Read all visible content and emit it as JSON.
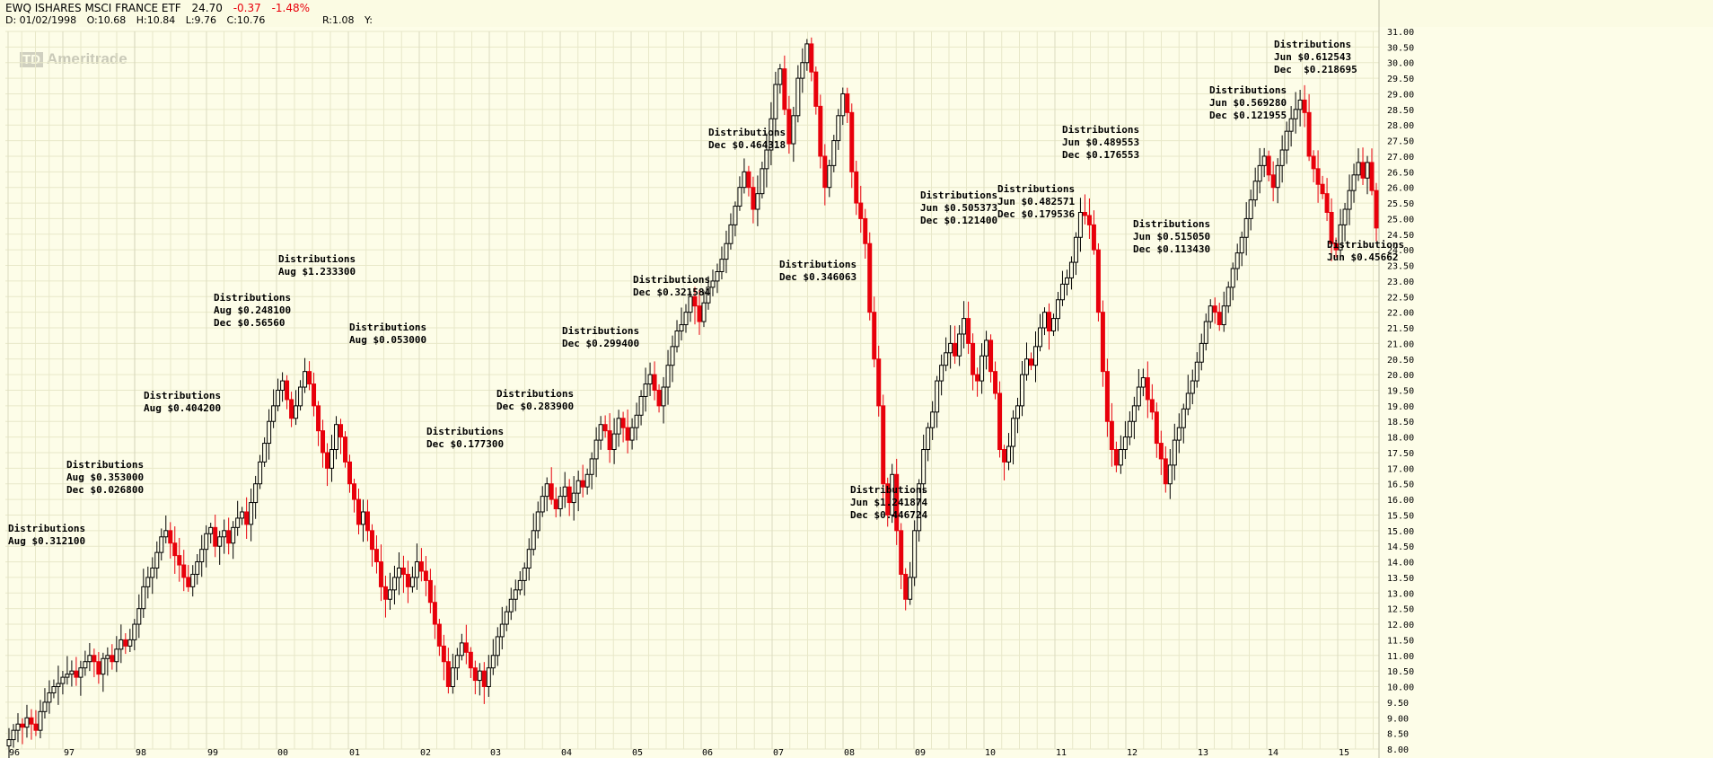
{
  "header": {
    "symbol_line": "EWQ ISHARES MSCI FRANCE ETF",
    "last": "24.70",
    "change": "-0.37",
    "change_pct": "-1.48%",
    "date": "D: 01/02/1998",
    "open": "O:10.68",
    "high": "H:10.84",
    "low": "L:9.76",
    "close": "C:10.76",
    "ratio": "R:1.08",
    "y_label": "Y:"
  },
  "watermark": {
    "badge": "TD",
    "text": "Ameritrade"
  },
  "colors": {
    "background": "#fdfde8",
    "grid": "#e8e8c9",
    "up": "#000000",
    "down": "#e8000b"
  },
  "chart_data": {
    "type": "candlestick",
    "grid": true,
    "y_axis_side": "right",
    "ylim": [
      8.0,
      31.0
    ],
    "y_ticks": [
      "8.00",
      "8.50",
      "9.00",
      "9.50",
      "10.00",
      "10.50",
      "11.00",
      "11.50",
      "12.00",
      "12.50",
      "13.00",
      "13.50",
      "14.00",
      "14.50",
      "15.00",
      "15.50",
      "16.00",
      "16.50",
      "17.00",
      "17.50",
      "18.00",
      "18.50",
      "19.00",
      "19.50",
      "20.00",
      "20.50",
      "21.00",
      "21.50",
      "22.00",
      "22.50",
      "23.00",
      "23.50",
      "24.00",
      "24.50",
      "25.00",
      "25.50",
      "26.00",
      "26.50",
      "27.00",
      "27.50",
      "28.00",
      "28.50",
      "29.00",
      "29.50",
      "30.00",
      "30.50",
      "31.00"
    ],
    "x_ticks": [
      "96",
      "97",
      "98",
      "99",
      "00",
      "01",
      "02",
      "03",
      "04",
      "05",
      "06",
      "07",
      "08",
      "09",
      "10",
      "11",
      "12",
      "13",
      "14",
      "15"
    ],
    "close": [
      8.3,
      8.6,
      8.8,
      8.7,
      9.0,
      8.8,
      8.6,
      9.2,
      9.5,
      9.8,
      10.0,
      10.1,
      10.3,
      10.4,
      10.5,
      10.3,
      10.6,
      10.8,
      11.0,
      10.8,
      10.4,
      10.9,
      11.0,
      10.8,
      11.2,
      11.5,
      11.3,
      11.5,
      12.0,
      12.5,
      13.2,
      13.5,
      13.8,
      14.3,
      14.8,
      15.0,
      14.6,
      14.2,
      13.9,
      13.5,
      13.2,
      13.6,
      14.0,
      14.4,
      14.9,
      15.1,
      14.5,
      14.8,
      15.0,
      14.6,
      15.1,
      15.4,
      15.6,
      15.2,
      15.9,
      16.5,
      17.2,
      17.8,
      18.5,
      19.0,
      19.5,
      19.8,
      19.2,
      18.6,
      19.0,
      19.6,
      20.1,
      19.7,
      19.0,
      18.2,
      17.5,
      17.0,
      17.6,
      18.4,
      18.0,
      17.2,
      16.5,
      16.0,
      15.2,
      15.6,
      15.0,
      14.4,
      14.0,
      13.2,
      12.8,
      13.1,
      13.5,
      13.8,
      13.6,
      13.2,
      13.5,
      14.0,
      13.7,
      13.4,
      12.7,
      12.0,
      11.3,
      10.8,
      10.0,
      10.6,
      11.0,
      11.4,
      11.1,
      10.6,
      10.2,
      10.5,
      10.0,
      10.6,
      11.0,
      11.6,
      12.0,
      12.4,
      12.8,
      13.1,
      13.4,
      13.8,
      14.4,
      15.0,
      15.6,
      16.1,
      16.5,
      16.0,
      15.7,
      16.1,
      16.4,
      15.9,
      16.2,
      16.6,
      16.4,
      16.8,
      17.3,
      17.9,
      18.4,
      18.2,
      17.6,
      18.1,
      18.6,
      18.3,
      17.9,
      18.3,
      18.7,
      19.3,
      19.7,
      20.0,
      19.5,
      19.0,
      19.6,
      20.3,
      20.9,
      21.4,
      21.6,
      22.0,
      22.5,
      22.2,
      21.7,
      22.3,
      22.8,
      23.0,
      23.3,
      23.7,
      24.2,
      24.8,
      25.4,
      26.0,
      26.5,
      26.0,
      25.3,
      25.8,
      26.6,
      27.2,
      28.2,
      29.3,
      29.8,
      28.5,
      27.4,
      28.3,
      29.5,
      30.0,
      30.6,
      29.7,
      28.6,
      27.0,
      26.0,
      26.7,
      27.5,
      28.3,
      29.0,
      28.4,
      26.5,
      25.5,
      25.0,
      24.2,
      22.0,
      20.5,
      19.0,
      16.5,
      15.5,
      16.8,
      15.0,
      13.6,
      12.8,
      13.5,
      15.0,
      16.5,
      17.6,
      18.3,
      18.8,
      19.8,
      20.3,
      20.7,
      21.0,
      20.6,
      21.3,
      21.8,
      21.0,
      20.0,
      19.8,
      20.6,
      21.1,
      20.1,
      19.4,
      17.6,
      17.2,
      17.7,
      18.6,
      19.0,
      20.0,
      20.5,
      20.3,
      20.9,
      21.5,
      22.0,
      21.4,
      21.8,
      22.4,
      22.9,
      23.1,
      23.6,
      24.4,
      25.2,
      25.1,
      24.8,
      24.0,
      22.0,
      20.1,
      18.5,
      17.6,
      17.1,
      17.6,
      18.0,
      18.5,
      19.0,
      19.6,
      19.9,
      19.2,
      18.8,
      17.8,
      17.3,
      16.5,
      17.1,
      17.9,
      18.3,
      18.9,
      19.4,
      19.8,
      20.4,
      21.0,
      21.7,
      22.2,
      22.0,
      21.6,
      22.2,
      22.8,
      23.4,
      23.9,
      24.4,
      25.0,
      25.6,
      26.2,
      26.7,
      27.0,
      26.4,
      26.0,
      26.7,
      27.2,
      27.8,
      28.2,
      28.5,
      28.8,
      28.4,
      27.0,
      26.6,
      26.1,
      25.8,
      25.2,
      24.2,
      24.0,
      24.8,
      25.3,
      25.9,
      26.4,
      26.8,
      26.3,
      26.8,
      25.9,
      24.7
    ],
    "distributions": [
      {
        "title": "Distributions",
        "lines": [
          "Aug $0.312100"
        ]
      },
      {
        "title": "Distributions",
        "lines": [
          "Aug $0.353000",
          "Dec $0.026800"
        ]
      },
      {
        "title": "Distributions",
        "lines": [
          "Aug $0.404200"
        ]
      },
      {
        "title": "Distributions",
        "lines": [
          "Aug $0.248100",
          "Dec $0.56560"
        ]
      },
      {
        "title": "Distributions",
        "lines": [
          "Aug $1.233300"
        ]
      },
      {
        "title": "Distributions",
        "lines": [
          "Aug $0.053000"
        ]
      },
      {
        "title": "Distributions",
        "lines": [
          "Dec $0.177300"
        ]
      },
      {
        "title": "Distributions",
        "lines": [
          "Dec $0.283900"
        ]
      },
      {
        "title": "Distributions",
        "lines": [
          "Dec $0.299400"
        ]
      },
      {
        "title": "Distributions",
        "lines": [
          "Dec $0.321584"
        ]
      },
      {
        "title": "Distributions",
        "lines": [
          "Dec $0.464318"
        ]
      },
      {
        "title": "Distributions",
        "lines": [
          "Dec $0.346063"
        ]
      },
      {
        "title": "Distributions",
        "lines": [
          "Jun $1.241874",
          "Dec $0.446724"
        ]
      },
      {
        "title": "Distributions",
        "lines": [
          "Jun $0.505373",
          "Dec $0.121400"
        ]
      },
      {
        "title": "Distributions",
        "lines": [
          "Jun $0.482571",
          "Dec $0.179536"
        ]
      },
      {
        "title": "Distributions",
        "lines": [
          "Jun $0.489553",
          "Dec $0.176553"
        ]
      },
      {
        "title": "Distributions",
        "lines": [
          "Jun $0.515050",
          "Dec $0.113430"
        ]
      },
      {
        "title": "Distributions",
        "lines": [
          "Jun $0.569280",
          "Dec $0.121955"
        ]
      },
      {
        "title": "Distributions",
        "lines": [
          "Jun $0.612543",
          "Dec  $0.218695"
        ]
      },
      {
        "title": "Distributions",
        "lines": [
          "Jun $0.45662"
        ]
      }
    ]
  }
}
